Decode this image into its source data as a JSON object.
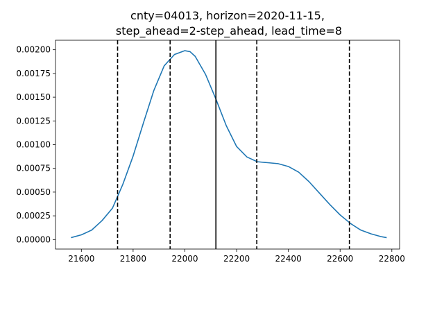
{
  "chart_data": {
    "type": "line",
    "title_lines": [
      "cnty=04013, horizon=2020-11-15,",
      "step_ahead=2-step_ahead, lead_time=8"
    ],
    "xlabel": "",
    "ylabel": "",
    "xlim": [
      21500,
      22830
    ],
    "ylim": [
      -0.0001,
      0.0021
    ],
    "xticks": [
      21600,
      21800,
      22000,
      22200,
      22400,
      22600,
      22800
    ],
    "xtick_labels": [
      "21600",
      "21800",
      "22000",
      "22200",
      "22400",
      "22600",
      "22800"
    ],
    "yticks": [
      0,
      0.00025,
      0.0005,
      0.00075,
      0.001,
      0.00125,
      0.0015,
      0.00175,
      0.002
    ],
    "ytick_labels": [
      "0.00000",
      "0.00025",
      "0.00050",
      "0.00075",
      "0.00100",
      "0.00125",
      "0.00150",
      "0.00175",
      "0.00200"
    ],
    "grid": false,
    "series": [
      {
        "color": "#1f77b4",
        "x": [
          21560,
          21600,
          21640,
          21680,
          21720,
          21760,
          21800,
          21840,
          21880,
          21920,
          21960,
          22000,
          22020,
          22040,
          22080,
          22120,
          22160,
          22200,
          22240,
          22280,
          22320,
          22360,
          22400,
          22440,
          22480,
          22520,
          22560,
          22600,
          22640,
          22680,
          22720,
          22760,
          22780
        ],
        "y": [
          2e-05,
          5e-05,
          0.0001,
          0.0002,
          0.00033,
          0.00058,
          0.00088,
          0.00123,
          0.00157,
          0.00183,
          0.00195,
          0.00199,
          0.00198,
          0.00193,
          0.00174,
          0.00148,
          0.0012,
          0.00098,
          0.00087,
          0.00082,
          0.00081,
          0.0008,
          0.00077,
          0.00071,
          0.00061,
          0.00049,
          0.00037,
          0.00026,
          0.00017,
          0.0001,
          6e-05,
          3e-05,
          2e-05
        ]
      }
    ],
    "vlines": [
      {
        "x": 21740,
        "style": "dashed",
        "color": "#000000"
      },
      {
        "x": 21943,
        "style": "dashed",
        "color": "#000000"
      },
      {
        "x": 22120,
        "style": "solid",
        "color": "#000000"
      },
      {
        "x": 22278,
        "style": "dashed",
        "color": "#000000"
      },
      {
        "x": 22636,
        "style": "dashed",
        "color": "#000000"
      }
    ]
  }
}
